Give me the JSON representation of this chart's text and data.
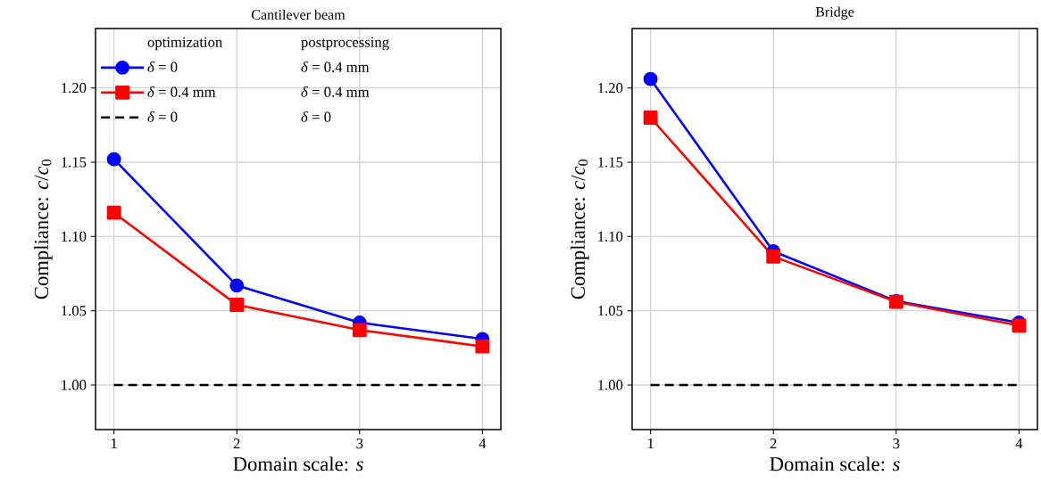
{
  "chart_data": [
    {
      "type": "line",
      "title": "Cantilever beam",
      "xlabel": "Domain scale: *s*",
      "ylabel": "Compliance: *c*/*c*$_{0}$",
      "x": [
        1,
        2,
        3,
        4
      ],
      "xlim": [
        0.85,
        4.15
      ],
      "ylim": [
        0.97,
        1.24
      ],
      "xticks": [
        1,
        2,
        3,
        4
      ],
      "yticks": [
        {
          "value": 1.0,
          "label": "1.00"
        },
        {
          "value": 1.05,
          "label": "1.05"
        },
        {
          "value": 1.1,
          "label": "1.10"
        },
        {
          "value": 1.15,
          "label": "1.15"
        },
        {
          "value": 1.2,
          "label": "1.20"
        }
      ],
      "grid": true,
      "legend": "top left",
      "annotations": [
        "optimization",
        "postprocessing",
        "*δ* = 0.4 mm",
        "*δ* = 0.4 mm",
        "*δ* = 0"
      ],
      "series": [
        {
          "name": "*δ* = 0",
          "color": "#0000ff",
          "marker": "circle",
          "line_style": "solid",
          "values": [
            1.152,
            1.067,
            1.042,
            1.031
          ]
        },
        {
          "name": "*δ* = 0.4 mm",
          "color": "#ff0000",
          "marker": "square",
          "line_style": "solid",
          "values": [
            1.116,
            1.054,
            1.037,
            1.026
          ]
        },
        {
          "name": "*δ* = 0",
          "color": "#000000",
          "marker": "none",
          "line_style": "dashed",
          "values": [
            1.0,
            1.0,
            1.0,
            1.0
          ]
        }
      ]
    },
    {
      "type": "line",
      "title": "Bridge",
      "xlabel": "Domain scale: *s*",
      "ylabel": "Compliance: *c*/*c*$_{0}$",
      "x": [
        1,
        2,
        3,
        4
      ],
      "xlim": [
        0.85,
        4.15
      ],
      "ylim": [
        0.97,
        1.24
      ],
      "xticks": [
        1,
        2,
        3,
        4
      ],
      "yticks": [
        {
          "value": 1.0,
          "label": "1.00"
        },
        {
          "value": 1.05,
          "label": "1.05"
        },
        {
          "value": 1.1,
          "label": "1.10"
        },
        {
          "value": 1.15,
          "label": "1.15"
        },
        {
          "value": 1.2,
          "label": "1.20"
        }
      ],
      "grid": true,
      "series": [
        {
          "color": "#0000ff",
          "marker": "circle",
          "line_style": "solid",
          "values": [
            1.206,
            1.09,
            1.0565,
            1.042
          ]
        },
        {
          "color": "#ff0000",
          "marker": "square",
          "line_style": "solid",
          "values": [
            1.18,
            1.0865,
            1.056,
            1.04
          ]
        },
        {
          "color": "#000000",
          "marker": "none",
          "line_style": "dashed",
          "values": [
            1.0,
            1.0,
            1.0,
            1.0
          ]
        }
      ]
    }
  ]
}
